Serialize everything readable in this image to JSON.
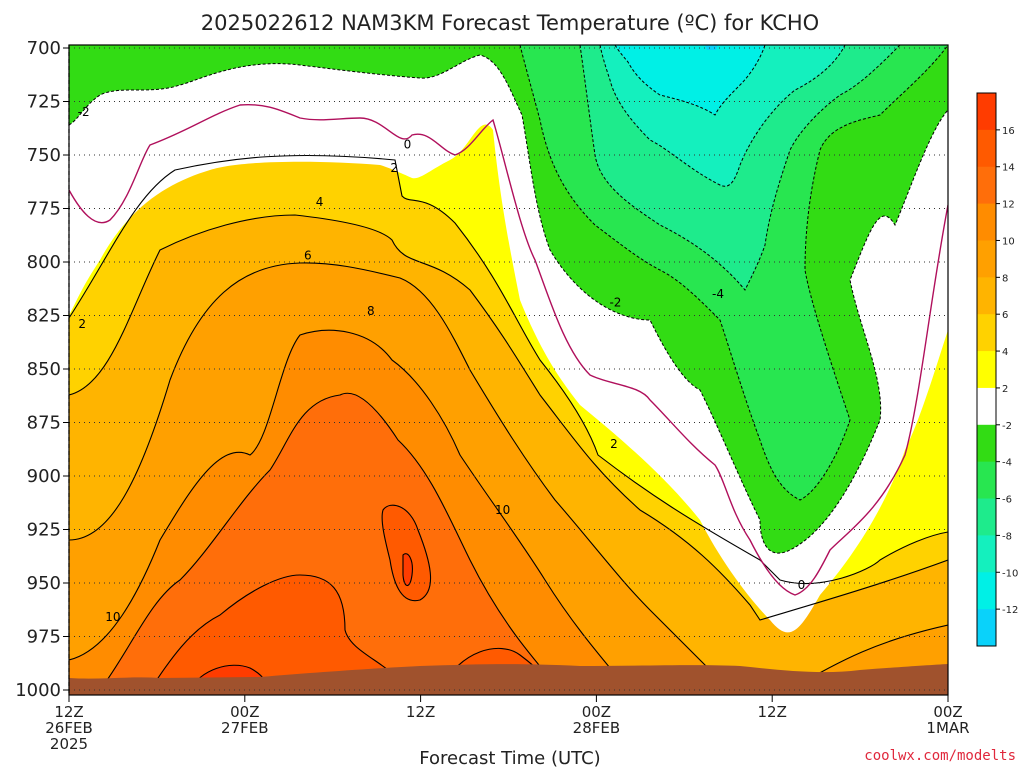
{
  "title": "2025022612 NAM3KM Forecast Temperature (ºC) for KCHO",
  "credit": "coolwx.com/modelts",
  "colors": {
    "background": "#ffffff",
    "ground": "#a0522d",
    "contour_zero": "#b0105c"
  },
  "chart_data": {
    "type": "filled-contour",
    "title": "2025022612 NAM3KM Forecast Temperature (ºC) for KCHO",
    "xlabel": "Forecast Time (UTC)",
    "ylabel": "",
    "x_ticks": [
      {
        "lines": [
          "12Z",
          "26FEB",
          "2025"
        ],
        "hour": 0
      },
      {
        "lines": [
          "00Z",
          "27FEB"
        ],
        "hour": 12
      },
      {
        "lines": [
          "12Z"
        ],
        "hour": 24
      },
      {
        "lines": [
          "00Z",
          "28FEB"
        ],
        "hour": 36
      },
      {
        "lines": [
          "12Z"
        ],
        "hour": 48
      },
      {
        "lines": [
          "00Z",
          "1MAR"
        ],
        "hour": 60
      }
    ],
    "xlim_hours": [
      0,
      60
    ],
    "y_ticks": [
      "700",
      "725",
      "750",
      "775",
      "800",
      "825",
      "850",
      "875",
      "900",
      "925",
      "950",
      "975",
      "1000"
    ],
    "ylim_hPa": [
      700,
      1000
    ],
    "grid": true,
    "colorbar": {
      "labels": [
        "16",
        "14",
        "12",
        "10",
        "8",
        "6",
        "4",
        "2",
        "-2",
        "-4",
        "-6",
        "-8",
        "-10",
        "-12"
      ],
      "bins": [
        {
          "range": [
            16,
            18
          ],
          "color": "#ff3c00"
        },
        {
          "range": [
            14,
            16
          ],
          "color": "#ff5a00"
        },
        {
          "range": [
            12,
            14
          ],
          "color": "#ff6e0a"
        },
        {
          "range": [
            10,
            12
          ],
          "color": "#ff8c00"
        },
        {
          "range": [
            8,
            10
          ],
          "color": "#ffa000"
        },
        {
          "range": [
            6,
            8
          ],
          "color": "#ffb400"
        },
        {
          "range": [
            4,
            6
          ],
          "color": "#ffd200"
        },
        {
          "range": [
            2,
            4
          ],
          "color": "#ffff00"
        },
        {
          "range": [
            -2,
            2
          ],
          "color": "#ffffff"
        },
        {
          "range": [
            -4,
            -2
          ],
          "color": "#32dc14"
        },
        {
          "range": [
            -6,
            -4
          ],
          "color": "#28e650"
        },
        {
          "range": [
            -8,
            -6
          ],
          "color": "#1eeb8c"
        },
        {
          "range": [
            -10,
            -8
          ],
          "color": "#14f0be"
        },
        {
          "range": [
            -12,
            -10
          ],
          "color": "#00f0e6"
        },
        {
          "range": [
            -14,
            -12
          ],
          "color": "#0ad2fa"
        }
      ]
    },
    "contour_labels": [
      {
        "text": "-2",
        "hour": 1.0,
        "p": 730
      },
      {
        "text": "0",
        "hour": 23.1,
        "p": 745
      },
      {
        "text": "2",
        "hour": 22.2,
        "p": 756
      },
      {
        "text": "4",
        "hour": 17.1,
        "p": 772
      },
      {
        "text": "6",
        "hour": 16.3,
        "p": 797
      },
      {
        "text": "8",
        "hour": 20.6,
        "p": 823
      },
      {
        "text": "2",
        "hour": 0.9,
        "p": 829
      },
      {
        "text": "10",
        "hour": 3.0,
        "p": 966
      },
      {
        "text": "-2",
        "hour": 37.3,
        "p": 819
      },
      {
        "text": "-4",
        "hour": 44.3,
        "p": 815
      },
      {
        "text": "2",
        "hour": 37.2,
        "p": 885
      },
      {
        "text": "10",
        "hour": 29.6,
        "p": 916
      },
      {
        "text": "0",
        "hour": 50.0,
        "p": 951
      }
    ]
  }
}
